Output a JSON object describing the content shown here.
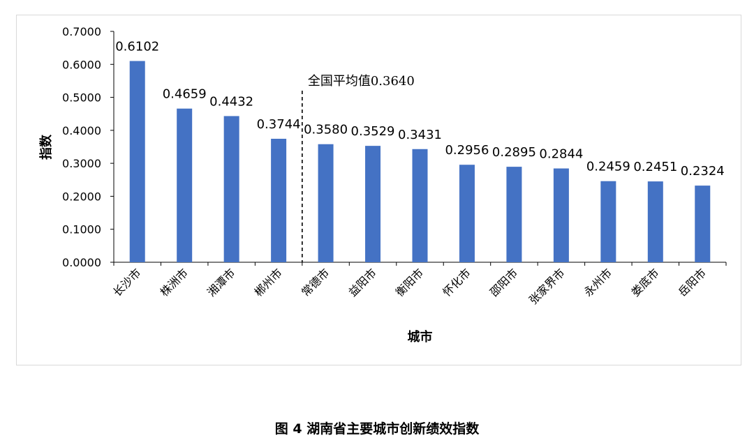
{
  "chart_data": {
    "type": "bar",
    "categories": [
      "长沙市",
      "株洲市",
      "湘潭市",
      "郴州市",
      "常德市",
      "益阳市",
      "衡阳市",
      "怀化市",
      "邵阳市",
      "张家界市",
      "永州市",
      "娄底市",
      "岳阳市"
    ],
    "values": [
      0.6102,
      0.4659,
      0.4432,
      0.3744,
      0.358,
      0.3529,
      0.3431,
      0.2956,
      0.2895,
      0.2844,
      0.2459,
      0.2451,
      0.2324
    ],
    "value_labels": [
      "0.6102",
      "0.4659",
      "0.4432",
      "0.3744",
      "0.3580",
      "0.3529",
      "0.3431",
      "0.2956",
      "0.2895",
      "0.2844",
      "0.2459",
      "0.2451",
      "0.2324"
    ],
    "xlabel": "城市",
    "ylabel": "指数",
    "ylim": [
      0,
      0.7
    ],
    "yticks": [
      "0.0000",
      "0.1000",
      "0.2000",
      "0.3000",
      "0.4000",
      "0.5000",
      "0.6000",
      "0.7000"
    ],
    "grid": false,
    "bar_color": "#4472c4",
    "reference_line": {
      "label": "全国平均值0.3640",
      "position_between": [
        "郴州市",
        "常德市"
      ],
      "style": "dashed"
    }
  },
  "caption": "图 4  湖南省主要城市创新绩效指数"
}
